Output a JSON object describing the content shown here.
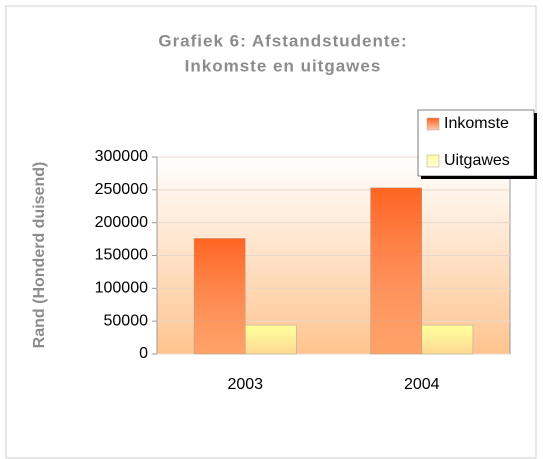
{
  "chart_data": {
    "type": "bar",
    "title": [
      "Grafiek 6: Afstandstudente:",
      "Inkomste en uitgawes"
    ],
    "y_label": "Rand (Honderd duisend)",
    "categories": [
      "2003",
      "2004"
    ],
    "series": [
      {
        "name": "Inkomste",
        "color": "#ff6420",
        "values": [
          176000,
          253000
        ]
      },
      {
        "name": "Uitgawes",
        "color": "#ffff99",
        "values": [
          44000,
          44000
        ]
      }
    ],
    "ylim": [
      0,
      300000
    ],
    "yticks": [
      0,
      50000,
      100000,
      150000,
      200000,
      250000,
      300000
    ],
    "grid": true,
    "legend": "upper right"
  }
}
